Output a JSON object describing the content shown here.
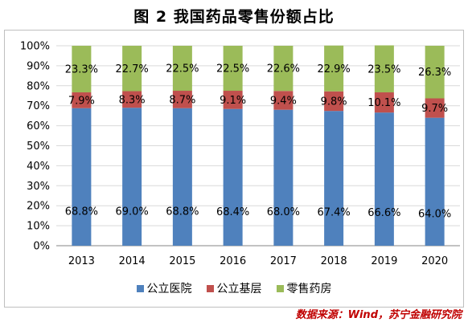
{
  "title": "图 2  我国药品零售份额占比",
  "source": "数据来源：Wind，苏宁金融研究院",
  "chart_data": {
    "type": "bar",
    "stacked": true,
    "categories": [
      "2013",
      "2014",
      "2015",
      "2016",
      "2017",
      "2018",
      "2019",
      "2020"
    ],
    "ylim": [
      0,
      100
    ],
    "yticks": [
      "0%",
      "10%",
      "20%",
      "30%",
      "40%",
      "50%",
      "60%",
      "70%",
      "80%",
      "90%",
      "100%"
    ],
    "grid": true,
    "legend_position": "bottom",
    "series": [
      {
        "name": "公立医院",
        "color": "#4f81bd",
        "values": [
          68.8,
          69.0,
          68.8,
          68.4,
          68.0,
          67.4,
          66.6,
          64.0
        ],
        "labels": [
          "68.8%",
          "69.0%",
          "68.8%",
          "68.4%",
          "68.0%",
          "67.4%",
          "66.6%",
          "64.0%"
        ]
      },
      {
        "name": "公立基层",
        "color": "#c0504d",
        "values": [
          7.9,
          8.3,
          8.7,
          9.1,
          9.4,
          9.8,
          10.1,
          9.7
        ],
        "labels": [
          "7.9%",
          "8.3%",
          "8.7%",
          "9.1%",
          "9.4%",
          "9.8%",
          "10.1%",
          "9.7%"
        ]
      },
      {
        "name": "零售药房",
        "color": "#9bbb59",
        "values": [
          23.3,
          22.7,
          22.5,
          22.5,
          22.6,
          22.9,
          23.5,
          26.3
        ],
        "labels": [
          "23.3%",
          "22.7%",
          "22.5%",
          "22.5%",
          "22.6%",
          "22.9%",
          "23.5%",
          "26.3%"
        ]
      }
    ]
  }
}
